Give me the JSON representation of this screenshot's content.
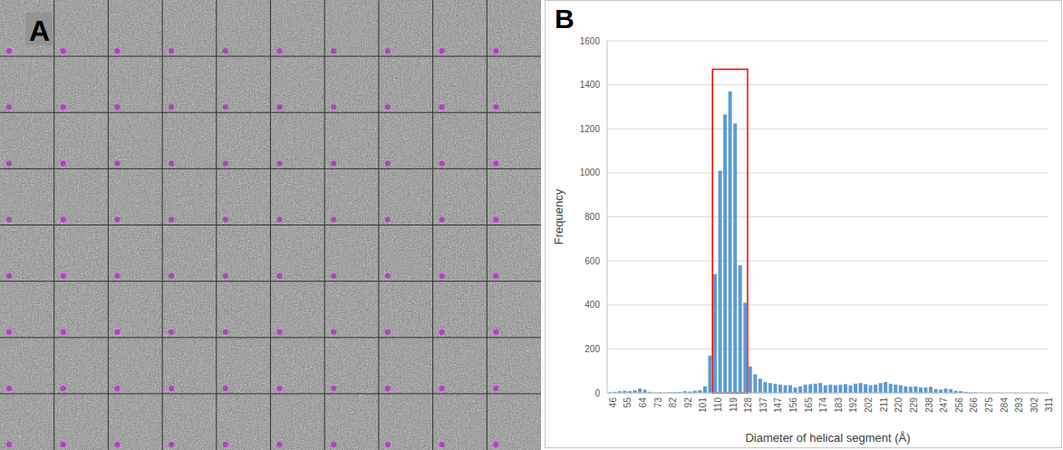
{
  "panel_labels": [
    "A",
    "B"
  ],
  "chart_data": {
    "type": "bar",
    "x_label": "Diameter of helical segment (Å)",
    "y_label": "Frequency",
    "categories": [
      46,
      null,
      null,
      55,
      null,
      null,
      64,
      null,
      null,
      73,
      null,
      null,
      82,
      null,
      null,
      92,
      null,
      null,
      101,
      null,
      null,
      110,
      null,
      null,
      119,
      null,
      null,
      128,
      null,
      null,
      137,
      null,
      null,
      147,
      null,
      null,
      156,
      null,
      null,
      165,
      null,
      null,
      174,
      null,
      null,
      183,
      null,
      null,
      192,
      null,
      null,
      202,
      null,
      null,
      211,
      null,
      null,
      220,
      null,
      null,
      229,
      null,
      null,
      238,
      null,
      null,
      247,
      null,
      null,
      256,
      null,
      null,
      266,
      null,
      null,
      275,
      null,
      null,
      284,
      null,
      null,
      293,
      null,
      null,
      302,
      null,
      null,
      311
    ],
    "values": [
      3,
      5,
      8,
      10,
      8,
      12,
      20,
      15,
      5,
      2,
      3,
      2,
      3,
      4,
      5,
      8,
      6,
      10,
      12,
      30,
      170,
      540,
      1010,
      1265,
      1370,
      1225,
      580,
      410,
      120,
      85,
      65,
      50,
      45,
      42,
      38,
      35,
      35,
      25,
      30,
      38,
      40,
      42,
      45,
      35,
      38,
      35,
      38,
      40,
      35,
      42,
      45,
      40,
      35,
      38,
      45,
      50,
      42,
      38,
      35,
      30,
      28,
      30,
      25,
      25,
      28,
      18,
      15,
      20,
      18,
      10,
      8,
      5,
      3,
      2,
      1,
      1,
      1,
      0,
      1,
      0,
      0,
      1,
      0,
      0,
      0,
      0,
      0,
      0
    ],
    "color": "#5b9bd5",
    "ylim": [
      0,
      1600
    ],
    "yticks": [
      0,
      200,
      400,
      600,
      800,
      1000,
      1200,
      1400,
      1600
    ],
    "grid": true,
    "highlight": {
      "from": 110,
      "to": 128,
      "top": 1470
    }
  }
}
